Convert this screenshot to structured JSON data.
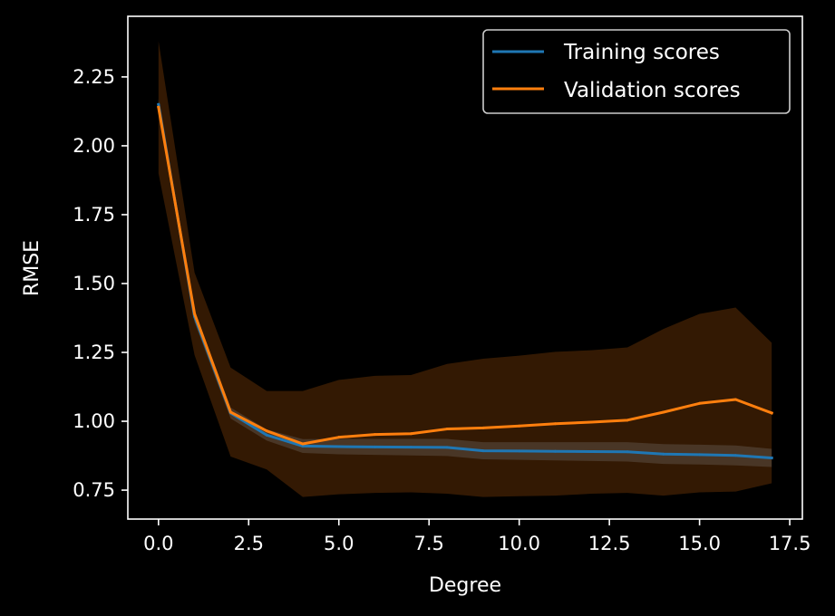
{
  "chart_data": {
    "type": "line",
    "title": "",
    "xlabel": "Degree",
    "ylabel": "RMSE",
    "xlim": [
      -0.85,
      17.85
    ],
    "ylim": [
      0.645,
      2.47
    ],
    "xticks": [
      0.0,
      2.5,
      5.0,
      7.5,
      10.0,
      12.5,
      15.0,
      17.5
    ],
    "xtick_labels": [
      "0.0",
      "2.5",
      "5.0",
      "7.5",
      "10.0",
      "12.5",
      "15.0",
      "17.5"
    ],
    "yticks": [
      0.75,
      1.0,
      1.25,
      1.5,
      1.75,
      2.0,
      2.25
    ],
    "ytick_labels": [
      "0.75",
      "1.00",
      "1.25",
      "1.50",
      "1.75",
      "2.00",
      "2.25"
    ],
    "grid": false,
    "legend_position": "top-right",
    "x": [
      0,
      1,
      2,
      3,
      4,
      5,
      6,
      7,
      8,
      9,
      10,
      11,
      12,
      13,
      14,
      15,
      16,
      17
    ],
    "series": [
      {
        "name": "Training scores",
        "color": "#1f77b4",
        "values": [
          2.15,
          1.38,
          1.03,
          0.95,
          0.91,
          0.908,
          0.907,
          0.906,
          0.905,
          0.893,
          0.892,
          0.891,
          0.89,
          0.889,
          0.881,
          0.879,
          0.876,
          0.867
        ],
        "lower": [
          2.13,
          1.36,
          1.01,
          0.93,
          0.885,
          0.88,
          0.878,
          0.876,
          0.874,
          0.862,
          0.86,
          0.858,
          0.856,
          0.854,
          0.845,
          0.843,
          0.84,
          0.834
        ],
        "upper": [
          2.17,
          1.4,
          1.05,
          0.97,
          0.935,
          0.936,
          0.936,
          0.936,
          0.936,
          0.924,
          0.924,
          0.924,
          0.924,
          0.924,
          0.917,
          0.915,
          0.912,
          0.9
        ]
      },
      {
        "name": "Validation scores",
        "color": "#ff7f0e",
        "values": [
          2.14,
          1.39,
          1.033,
          0.965,
          0.918,
          0.942,
          0.952,
          0.955,
          0.972,
          0.976,
          0.983,
          0.991,
          0.997,
          1.004,
          1.033,
          1.065,
          1.079,
          1.03
        ],
        "lower": [
          1.9,
          1.24,
          0.872,
          0.825,
          0.725,
          0.735,
          0.74,
          0.742,
          0.737,
          0.725,
          0.728,
          0.73,
          0.737,
          0.74,
          0.73,
          0.742,
          0.745,
          0.775
        ],
        "upper": [
          2.38,
          1.54,
          1.195,
          1.11,
          1.11,
          1.15,
          1.165,
          1.168,
          1.208,
          1.227,
          1.238,
          1.252,
          1.258,
          1.268,
          1.335,
          1.39,
          1.413,
          1.285
        ]
      }
    ]
  }
}
